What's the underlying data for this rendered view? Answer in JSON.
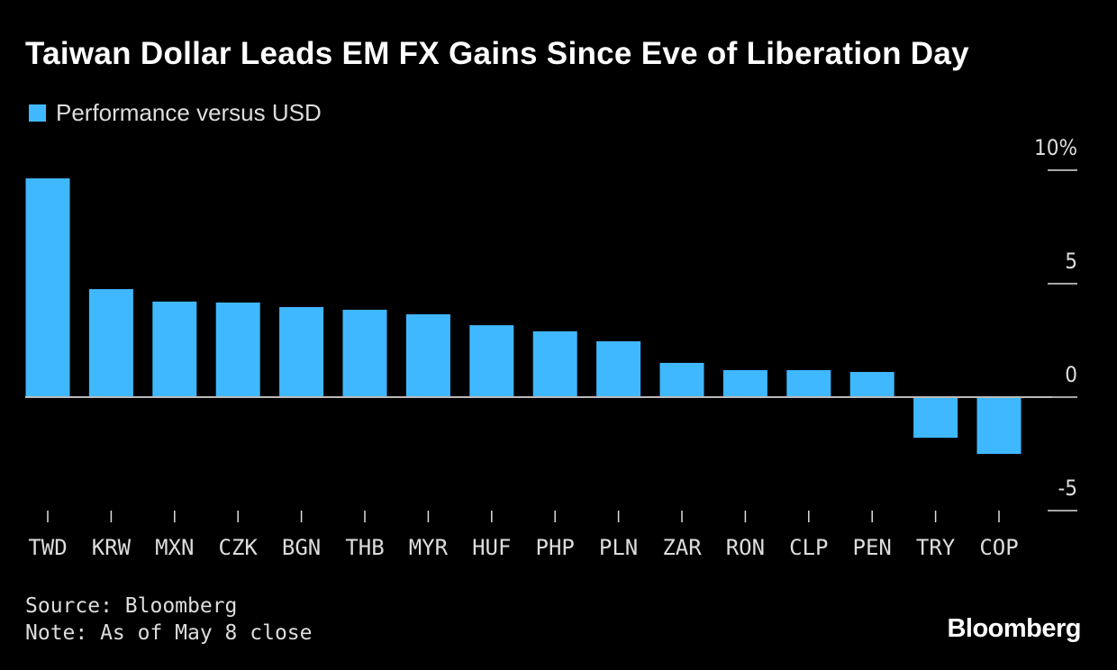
{
  "chart_data": {
    "type": "bar",
    "title": "Taiwan Dollar Leads EM FX Gains Since Eve of Liberation Day",
    "categories": [
      "TWD",
      "KRW",
      "MXN",
      "CZK",
      "BGN",
      "THB",
      "MYR",
      "HUF",
      "PHP",
      "PLN",
      "ZAR",
      "RON",
      "CLP",
      "PEN",
      "TRY",
      "COP"
    ],
    "series": [
      {
        "name": "Performance versus USD",
        "color": "#40b8ff",
        "values": [
          9.64,
          4.76,
          4.21,
          4.17,
          3.97,
          3.85,
          3.65,
          3.17,
          2.9,
          2.46,
          1.51,
          1.19,
          1.19,
          1.11,
          -1.79,
          -2.5
        ]
      }
    ],
    "ylim": [
      -5,
      10
    ],
    "yticks": [
      10,
      5,
      0,
      -5
    ],
    "ytick_labels": [
      "10%",
      "5",
      "0",
      "-5"
    ],
    "y_axis_position": "right",
    "grid": false,
    "legend_position": "top-left"
  },
  "footer": {
    "source": "Source: Bloomberg",
    "note": "Note: As of May 8 close"
  },
  "brand": "Bloomberg"
}
